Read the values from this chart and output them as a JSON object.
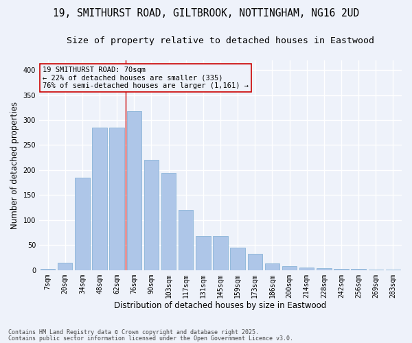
{
  "title_line1": "19, SMITHURST ROAD, GILTBROOK, NOTTINGHAM, NG16 2UD",
  "title_line2": "Size of property relative to detached houses in Eastwood",
  "xlabel": "Distribution of detached houses by size in Eastwood",
  "ylabel": "Number of detached properties",
  "categories": [
    "7sqm",
    "20sqm",
    "34sqm",
    "48sqm",
    "62sqm",
    "76sqm",
    "90sqm",
    "103sqm",
    "117sqm",
    "131sqm",
    "145sqm",
    "159sqm",
    "173sqm",
    "186sqm",
    "200sqm",
    "214sqm",
    "228sqm",
    "242sqm",
    "256sqm",
    "269sqm",
    "283sqm"
  ],
  "values": [
    2,
    15,
    185,
    285,
    285,
    318,
    220,
    195,
    120,
    68,
    68,
    45,
    32,
    13,
    8,
    5,
    4,
    3,
    2,
    1,
    1
  ],
  "bar_color": "#aec6e8",
  "bar_edgecolor": "#8ab4d8",
  "background_color": "#eef2fa",
  "grid_color": "#ffffff",
  "annotation_text": "19 SMITHURST ROAD: 70sqm\n← 22% of detached houses are smaller (335)\n76% of semi-detached houses are larger (1,161) →",
  "annotation_box_edgecolor": "#cc0000",
  "vline_color": "#cc0000",
  "ylim": [
    0,
    420
  ],
  "yticks": [
    0,
    50,
    100,
    150,
    200,
    250,
    300,
    350,
    400
  ],
  "footnote1": "Contains HM Land Registry data © Crown copyright and database right 2025.",
  "footnote2": "Contains public sector information licensed under the Open Government Licence v3.0.",
  "title_fontsize": 10.5,
  "subtitle_fontsize": 9.5,
  "ylabel_fontsize": 8.5,
  "xlabel_fontsize": 8.5,
  "tick_fontsize": 7,
  "annot_fontsize": 7.5,
  "footnote_fontsize": 6
}
